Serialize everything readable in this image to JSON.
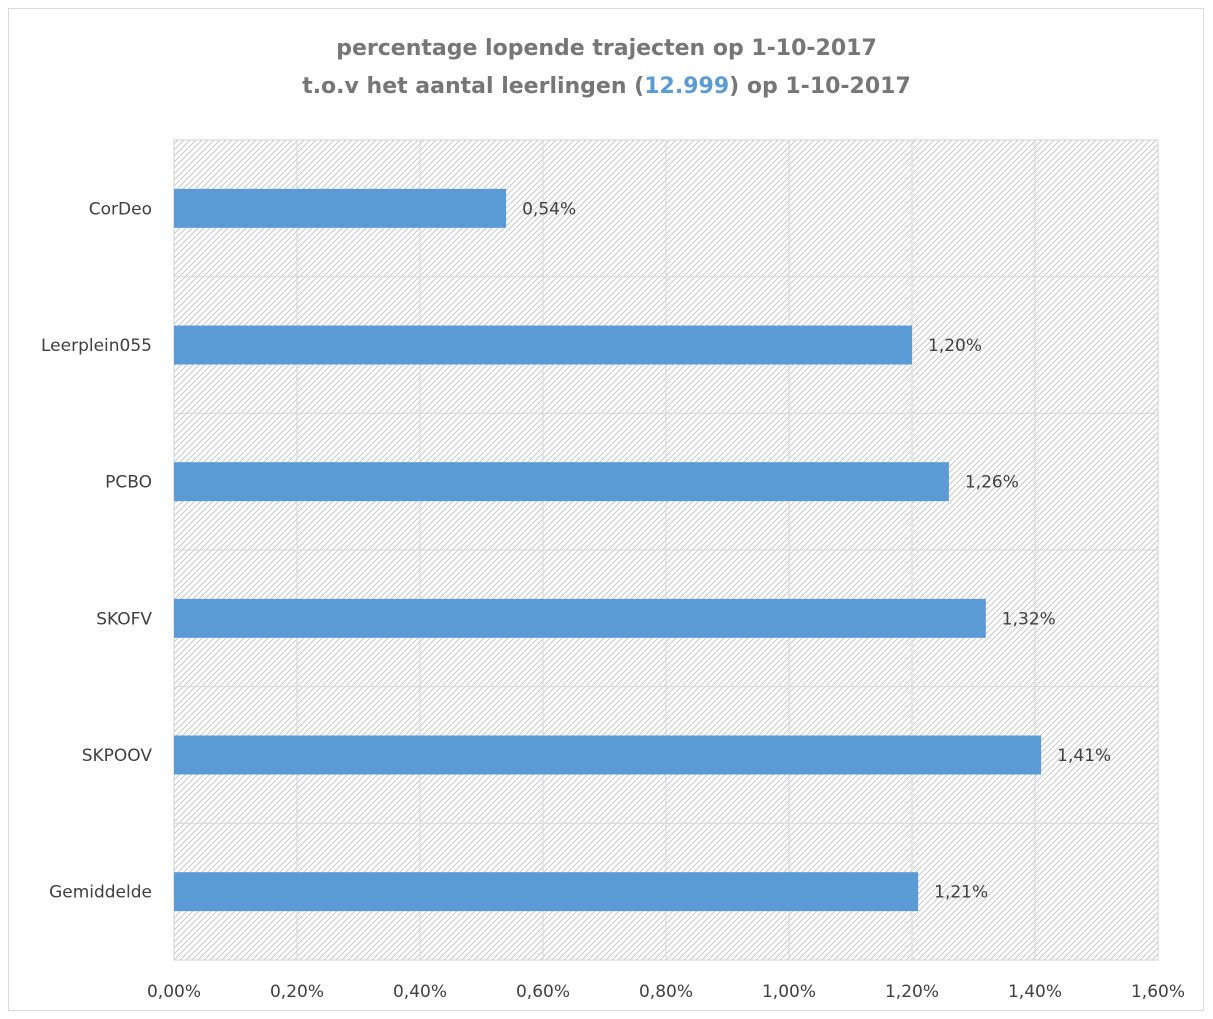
{
  "chart_data": {
    "type": "bar",
    "orientation": "horizontal",
    "title_line1": "percentage lopende trajecten op 1-10-2017",
    "title_line2_before": "t.o.v het aantal leerlingen (",
    "title_line2_highlight": "12.999",
    "title_line2_after": ") op 1-10-2017",
    "categories": [
      "CorDeo",
      "Leerplein055",
      "PCBO",
      "SKOFV",
      "SKPOOV",
      "Gemiddelde"
    ],
    "values": [
      0.54,
      1.2,
      1.26,
      1.32,
      1.41,
      1.21
    ],
    "data_labels": [
      "0,54%",
      "1,20%",
      "1,26%",
      "1,32%",
      "1,41%",
      "1,21%"
    ],
    "x_ticks": [
      0,
      0.2,
      0.4,
      0.6,
      0.8,
      1.0,
      1.2,
      1.4,
      1.6
    ],
    "x_tick_labels": [
      "0,00%",
      "0,20%",
      "0,40%",
      "0,60%",
      "0,80%",
      "1,00%",
      "1,20%",
      "1,40%",
      "1,60%"
    ],
    "xlim": [
      0,
      1.6
    ],
    "grid": true,
    "colors": {
      "bar": "#5b9bd5",
      "title": "#767676",
      "title_highlight": "#5b9bd5",
      "grid": "#d9d9d9",
      "hatch": "#c8c8c8",
      "text": "#404040"
    }
  }
}
